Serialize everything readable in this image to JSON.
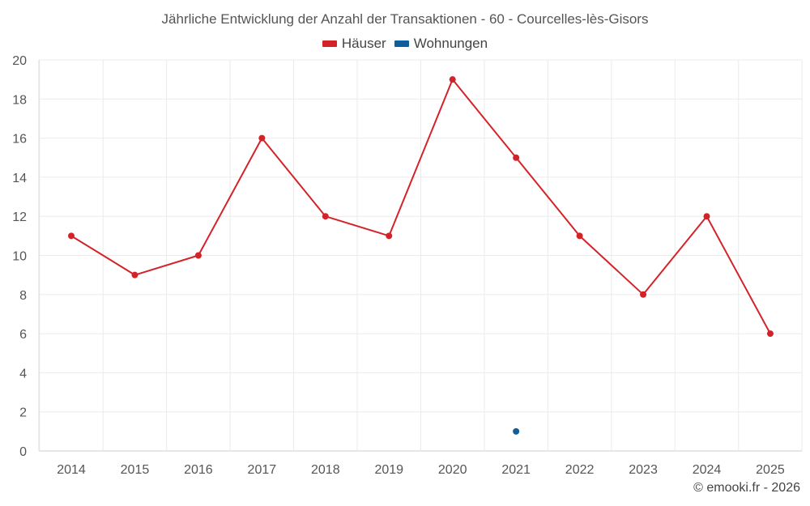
{
  "chart_data": {
    "type": "line",
    "title": "Jährliche Entwicklung der Anzahl der Transaktionen - 60 - Courcelles-lès-Gisors",
    "categories": [
      "2014",
      "2015",
      "2016",
      "2017",
      "2018",
      "2019",
      "2020",
      "2021",
      "2022",
      "2023",
      "2024",
      "2025"
    ],
    "series": [
      {
        "name": "Häuser",
        "color": "#d32329",
        "values": [
          11,
          9,
          10,
          16,
          12,
          11,
          19,
          15,
          11,
          8,
          12,
          6
        ]
      },
      {
        "name": "Wohnungen",
        "color": "#0f5f9c",
        "values": [
          null,
          null,
          null,
          null,
          null,
          null,
          null,
          1,
          null,
          null,
          null,
          null
        ]
      }
    ],
    "xlabel": "",
    "ylabel": "",
    "ylim": [
      0,
      20
    ],
    "yticks": [
      0,
      2,
      4,
      6,
      8,
      10,
      12,
      14,
      16,
      18,
      20
    ],
    "grid": true,
    "legend_position": "top-center"
  },
  "credit": "© emooki.fr - 2026"
}
